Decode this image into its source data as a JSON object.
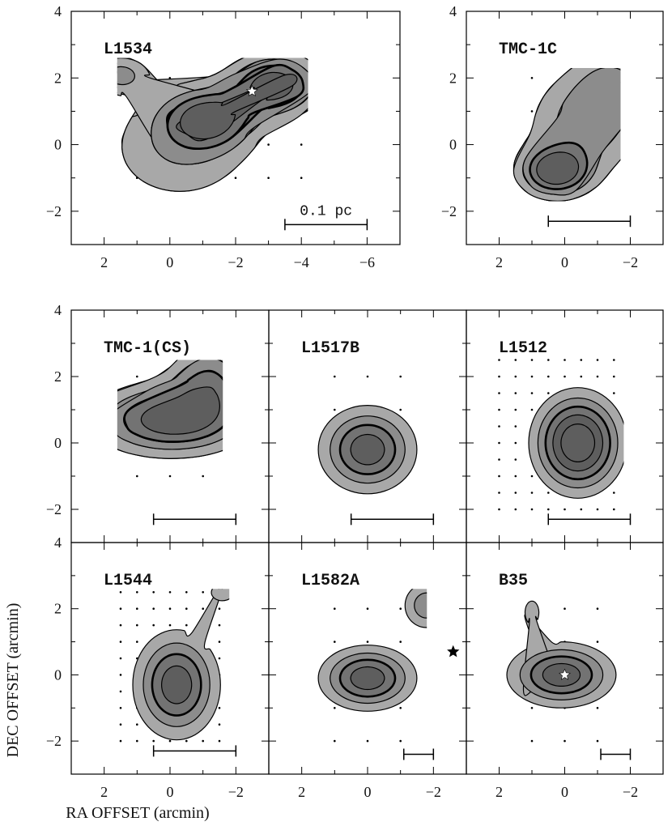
{
  "chart_data": {
    "type": "contour",
    "xlabel": "RA OFFSET (arcmin)",
    "ylabel": "DEC OFFSET (arcmin)",
    "colors": {
      "level1": "#a8a8a8",
      "level2": "#8c8c8c",
      "level3": "#737373",
      "level4": "#5e5e5e",
      "grid_dot": "#000000",
      "star": "#ffffff"
    },
    "panels": [
      {
        "id": "L1534",
        "title": "L1534",
        "xlim": [
          3.0,
          -7.0
        ],
        "ylim": [
          -3,
          4
        ],
        "xticks": [
          "2",
          "0",
          "−2",
          "−4",
          "−6"
        ],
        "xtick_values": [
          2,
          0,
          -2,
          -4,
          -6
        ],
        "yticks": [
          "4",
          "2",
          "0",
          "−2"
        ],
        "ytick_values": [
          4,
          2,
          0,
          -2
        ],
        "map_extent": {
          "x": [
            1.6,
            -4.2
          ],
          "y": [
            -1.7,
            2.6
          ]
        },
        "grid_step": 1.0,
        "star": [
          -2.5,
          1.6
        ],
        "scale_bar": {
          "label": "0.1 pc",
          "x": [
            -3.5,
            -6.0
          ],
          "y": -2.4
        },
        "peaks": [
          {
            "x": -3.2,
            "y": 1.8,
            "sx": 0.9,
            "sy": 0.6,
            "amp": 1.0
          },
          {
            "x": -1.2,
            "y": 0.8,
            "sx": 0.9,
            "sy": 0.6,
            "amp": 0.8
          },
          {
            "x": -0.3,
            "y": -0.1,
            "sx": 1.6,
            "sy": 1.2,
            "amp": 0.45
          },
          {
            "x": 1.5,
            "y": 2.1,
            "sx": 0.6,
            "sy": 0.4,
            "amp": 0.5
          }
        ],
        "levels": [
          0.25,
          0.45,
          0.65,
          0.85
        ]
      },
      {
        "id": "TMC-1C",
        "title": "TMC-1C",
        "xlim": [
          3.0,
          -3.0
        ],
        "ylim": [
          -3,
          4
        ],
        "xticks": [
          "2",
          "0",
          "−2"
        ],
        "xtick_values": [
          2,
          0,
          -2
        ],
        "yticks": [
          "4",
          "2",
          "0",
          "−2"
        ],
        "ytick_values": [
          4,
          2,
          0,
          -2
        ],
        "map_extent": {
          "x": [
            1.7,
            -1.7
          ],
          "y": [
            -1.7,
            2.3
          ]
        },
        "grid_step": 1.0,
        "scale_bar": {
          "x": [
            0.5,
            -2.0
          ],
          "y": -2.3
        },
        "peaks": [
          {
            "x": 0.3,
            "y": -0.8,
            "sx": 0.7,
            "sy": 0.5,
            "amp": 1.0
          },
          {
            "x": -0.6,
            "y": 0.6,
            "sx": 1.2,
            "sy": 1.1,
            "amp": 0.55
          },
          {
            "x": -1.5,
            "y": 1.8,
            "sx": 0.8,
            "sy": 0.8,
            "amp": 0.4
          }
        ],
        "levels": [
          0.25,
          0.45,
          0.65,
          0.85
        ]
      },
      {
        "id": "TMC-1(CS)",
        "title": "TMC-1(CS)",
        "xlim": [
          3.0,
          -3.0
        ],
        "ylim": [
          -3,
          4
        ],
        "xticks": [],
        "xtick_values": [],
        "yticks": [
          "4",
          "2",
          "0",
          "−2"
        ],
        "ytick_values": [
          4,
          2,
          0,
          -2
        ],
        "map_extent": {
          "x": [
            1.6,
            -1.6
          ],
          "y": [
            -1.7,
            2.5
          ]
        },
        "grid_step": 1.0,
        "scale_bar": {
          "x": [
            0.5,
            -2.0
          ],
          "y": -2.3
        },
        "peaks": [
          {
            "x": 0.0,
            "y": 0.7,
            "sx": 1.5,
            "sy": 0.7,
            "amp": 1.0
          },
          {
            "x": -1.2,
            "y": 1.9,
            "sx": 0.8,
            "sy": 0.8,
            "amp": 0.6
          }
        ],
        "levels": [
          0.25,
          0.45,
          0.65,
          0.85
        ]
      },
      {
        "id": "L1517B",
        "title": "L1517B",
        "xlim": [
          3.0,
          -3.0
        ],
        "ylim": [
          -3,
          4
        ],
        "xticks": [],
        "xtick_values": [],
        "yticks": [],
        "ytick_values": [],
        "map_extent": {
          "x": [
            1.6,
            -1.6
          ],
          "y": [
            -1.7,
            2.5
          ]
        },
        "grid_step": 1.0,
        "scale_bar": {
          "x": [
            0.5,
            -2.0
          ],
          "y": -2.3
        },
        "peaks": [
          {
            "x": 0.0,
            "y": -0.2,
            "sx": 0.9,
            "sy": 0.8,
            "amp": 1.0
          }
        ],
        "levels": [
          0.25,
          0.45,
          0.65,
          0.85
        ]
      },
      {
        "id": "L1512",
        "title": "L1512",
        "xlim": [
          3.0,
          -3.0
        ],
        "ylim": [
          -3,
          4
        ],
        "xticks": [],
        "xtick_values": [],
        "yticks": [],
        "ytick_values": [],
        "map_extent": {
          "x": [
            2.0,
            -1.8
          ],
          "y": [
            -2.0,
            2.6
          ]
        },
        "grid_step": 0.5,
        "scale_bar": {
          "x": [
            0.5,
            -2.0
          ],
          "y": -2.3
        },
        "peaks": [
          {
            "x": -0.4,
            "y": 0.0,
            "sx": 0.9,
            "sy": 1.0,
            "amp": 1.0
          }
        ],
        "levels": [
          0.25,
          0.4,
          0.55,
          0.7,
          0.85
        ]
      },
      {
        "id": "L1544",
        "title": "L1544",
        "xlim": [
          3.0,
          -3.0
        ],
        "ylim": [
          -3,
          4
        ],
        "xticks": [
          "2",
          "0",
          "−2"
        ],
        "xtick_values": [
          2,
          0,
          -2
        ],
        "yticks": [
          "4",
          "2",
          "0",
          "−2"
        ],
        "ytick_values": [
          4,
          2,
          0,
          -2
        ],
        "map_extent": {
          "x": [
            1.8,
            -1.8
          ],
          "y": [
            -2.2,
            2.6
          ]
        },
        "grid_step": 0.5,
        "scale_bar": {
          "x": [
            0.5,
            -2.0
          ],
          "y": -2.3
        },
        "peaks": [
          {
            "x": -0.2,
            "y": -0.3,
            "sx": 0.8,
            "sy": 1.0,
            "amp": 1.0
          },
          {
            "x": -1.6,
            "y": 2.5,
            "sx": 0.4,
            "sy": 0.3,
            "amp": 0.35
          }
        ],
        "levels": [
          0.25,
          0.45,
          0.65,
          0.85
        ]
      },
      {
        "id": "L1582A",
        "title": "L1582A",
        "xlim": [
          3.0,
          -3.0
        ],
        "ylim": [
          -3,
          4
        ],
        "xticks": [
          "2",
          "0",
          "−2"
        ],
        "xtick_values": [
          2,
          0,
          -2
        ],
        "yticks": [],
        "ytick_values": [],
        "map_extent": {
          "x": [
            1.8,
            -1.8
          ],
          "y": [
            -2.0,
            2.6
          ]
        },
        "grid_step": 1.0,
        "star": [
          -2.6,
          0.7
        ],
        "star_dark": true,
        "scale_bar": {
          "x": [
            -1.1,
            -2.0
          ],
          "y": -2.4
        },
        "peaks": [
          {
            "x": 0.0,
            "y": -0.1,
            "sx": 0.9,
            "sy": 0.6,
            "amp": 1.0
          },
          {
            "x": -1.8,
            "y": 2.1,
            "sx": 0.5,
            "sy": 0.5,
            "amp": 0.6
          }
        ],
        "levels": [
          0.25,
          0.45,
          0.65,
          0.85
        ]
      },
      {
        "id": "B35",
        "title": "B35",
        "xlim": [
          3.0,
          -3.0
        ],
        "ylim": [
          -3,
          4
        ],
        "xticks": [
          "2",
          "0",
          "−2"
        ],
        "xtick_values": [
          2,
          0,
          -2
        ],
        "yticks": [],
        "ytick_values": [],
        "map_extent": {
          "x": [
            1.8,
            -1.8
          ],
          "y": [
            -2.0,
            2.6
          ]
        },
        "grid_step": 1.0,
        "star": [
          0.0,
          0.0
        ],
        "scale_bar": {
          "x": [
            -1.1,
            -2.0
          ],
          "y": -2.4
        },
        "peaks": [
          {
            "x": 0.1,
            "y": 0.0,
            "sx": 1.0,
            "sy": 0.6,
            "amp": 1.0
          },
          {
            "x": 1.0,
            "y": 1.9,
            "sx": 0.25,
            "sy": 0.4,
            "amp": 0.35
          }
        ],
        "levels": [
          0.25,
          0.45,
          0.65,
          0.85
        ]
      }
    ]
  }
}
